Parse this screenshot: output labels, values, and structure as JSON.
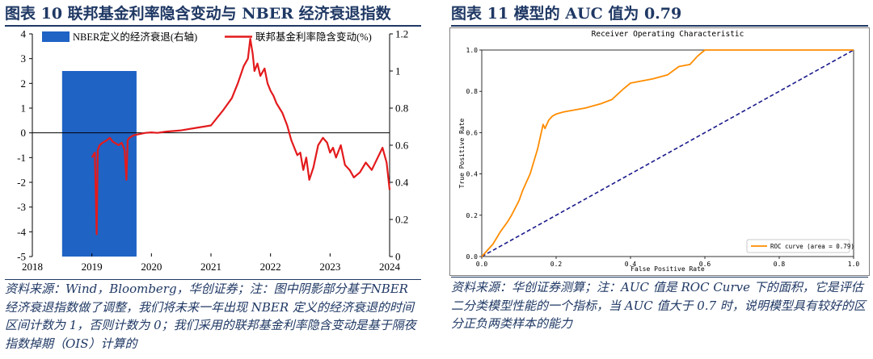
{
  "left_panel": {
    "title": "图表 10  联邦基金利率隐含变动与 NBER 经济衰退指数",
    "source": "资料来源：Wind，Bloomberg，华创证券；注：图中阴影部分基于NBER 经济衰退指数做了调整，我们将未来一年出现 NBER 定义的经济衰退的时间区间计数为 1，否则计数为 0；我们采用的联邦基金利率隐含变动是基于隔夜指数掉期（OIS）计算的"
  },
  "right_panel": {
    "title": "图表 11  模型的 AUC 值为 0.79",
    "source": "资料来源：华创证券测算；注：AUC 值是 ROC Curve 下的面积，它是评估二分类模型性能的一个指标，当 AUC 值大于 0.7 时，说明模型具有较好的区分正负两类样本的能力"
  },
  "chart_data": [
    {
      "type": "line",
      "title": "",
      "legend_placement": "top",
      "x_ticks": [
        "2018",
        "2019",
        "2020",
        "2021",
        "2022",
        "2023",
        "2024"
      ],
      "xlim": [
        2018.0,
        2024.0
      ],
      "ylim_left": [
        -5,
        4
      ],
      "y_ticks_left": [
        "4",
        "3",
        "2",
        "1",
        "0",
        "-1",
        "-2",
        "-3",
        "-4",
        "-5"
      ],
      "ylim_right": [
        0,
        1.2
      ],
      "y_ticks_right": [
        "1.2",
        "1",
        "0.8",
        "0.6",
        "0.4",
        "0.2",
        "0"
      ],
      "series": [
        {
          "name": "NBER定义的经济衰退(右轴)",
          "kind": "bar",
          "axis": "right",
          "color": "#1f63c4",
          "x_start": 2018.5,
          "x_end": 2019.75,
          "value": 1
        },
        {
          "name": "联邦基金利率隐含变动(%)",
          "kind": "line",
          "axis": "left",
          "color": "#e31a1c",
          "x": [
            2019.0,
            2019.05,
            2019.08,
            2019.1,
            2019.13,
            2019.18,
            2019.25,
            2019.3,
            2019.35,
            2019.45,
            2019.5,
            2019.55,
            2019.58,
            2019.6,
            2019.63,
            2019.7,
            2019.8,
            2019.9,
            2020.0,
            2020.1,
            2020.25,
            2020.5,
            2020.75,
            2021.0,
            2021.2,
            2021.35,
            2021.45,
            2021.55,
            2021.62,
            2021.66,
            2021.7,
            2021.73,
            2021.78,
            2021.83,
            2021.9,
            2021.95,
            2022.0,
            2022.05,
            2022.1,
            2022.15,
            2022.2,
            2022.28,
            2022.35,
            2022.45,
            2022.5,
            2022.55,
            2022.6,
            2022.65,
            2022.72,
            2022.8,
            2022.88,
            2022.95,
            2023.0,
            2023.05,
            2023.1,
            2023.18,
            2023.25,
            2023.33,
            2023.4,
            2023.5,
            2023.6,
            2023.7,
            2023.8,
            2023.88,
            2023.95,
            2024.0
          ],
          "y": [
            -1.0,
            -0.8,
            -4.1,
            -0.7,
            -0.5,
            -0.4,
            -0.3,
            -0.2,
            -0.35,
            -0.5,
            -0.4,
            -0.7,
            -1.9,
            -0.3,
            -0.2,
            -0.1,
            -0.05,
            0.0,
            0.02,
            0.0,
            0.05,
            0.1,
            0.2,
            0.3,
            0.9,
            1.4,
            2.0,
            2.7,
            3.0,
            3.8,
            3.2,
            2.5,
            2.8,
            2.3,
            2.6,
            2.0,
            1.7,
            1.5,
            1.2,
            1.0,
            0.8,
            0.3,
            -0.3,
            -0.9,
            -0.8,
            -1.5,
            -1.0,
            -1.9,
            -1.4,
            -0.5,
            -0.2,
            -0.4,
            -0.8,
            -0.6,
            -1.0,
            -0.5,
            -1.3,
            -1.5,
            -1.8,
            -1.6,
            -1.2,
            -1.5,
            -1.0,
            -0.6,
            -1.2,
            -2.3
          ]
        }
      ]
    },
    {
      "type": "line",
      "title": "Receiver Operating Characteristic",
      "xlabel": "False Positive Rate",
      "ylabel": "True Positive Rate",
      "xlim": [
        0,
        1.0
      ],
      "ylim": [
        0,
        1.0
      ],
      "x_ticks": [
        "0.0",
        "0.2",
        "0.4",
        "0.6",
        "0.8",
        "1.0"
      ],
      "y_ticks": [
        "0.0",
        "0.2",
        "0.4",
        "0.6",
        "0.8",
        "1.0"
      ],
      "legend_placement": "lower-right",
      "series": [
        {
          "name": "ROC curve (area = 0.79)",
          "color": "#ff8c00",
          "style": "solid",
          "x": [
            0.0,
            0.01,
            0.03,
            0.05,
            0.07,
            0.08,
            0.1,
            0.11,
            0.12,
            0.13,
            0.14,
            0.15,
            0.16,
            0.165,
            0.17,
            0.18,
            0.19,
            0.2,
            0.22,
            0.25,
            0.28,
            0.3,
            0.32,
            0.35,
            0.38,
            0.4,
            0.43,
            0.46,
            0.5,
            0.53,
            0.56,
            0.57,
            0.58,
            0.6,
            0.7,
            0.8,
            0.9,
            1.0
          ],
          "y": [
            0.0,
            0.02,
            0.06,
            0.12,
            0.17,
            0.2,
            0.27,
            0.32,
            0.36,
            0.4,
            0.46,
            0.52,
            0.6,
            0.64,
            0.62,
            0.66,
            0.68,
            0.69,
            0.7,
            0.71,
            0.72,
            0.73,
            0.74,
            0.76,
            0.81,
            0.84,
            0.85,
            0.86,
            0.88,
            0.92,
            0.93,
            0.95,
            0.97,
            1.0,
            1.0,
            1.0,
            1.0,
            1.0
          ]
        },
        {
          "name": "",
          "color": "#1a1a8c",
          "style": "dashed",
          "x": [
            0,
            1
          ],
          "y": [
            0,
            1
          ]
        }
      ]
    }
  ]
}
